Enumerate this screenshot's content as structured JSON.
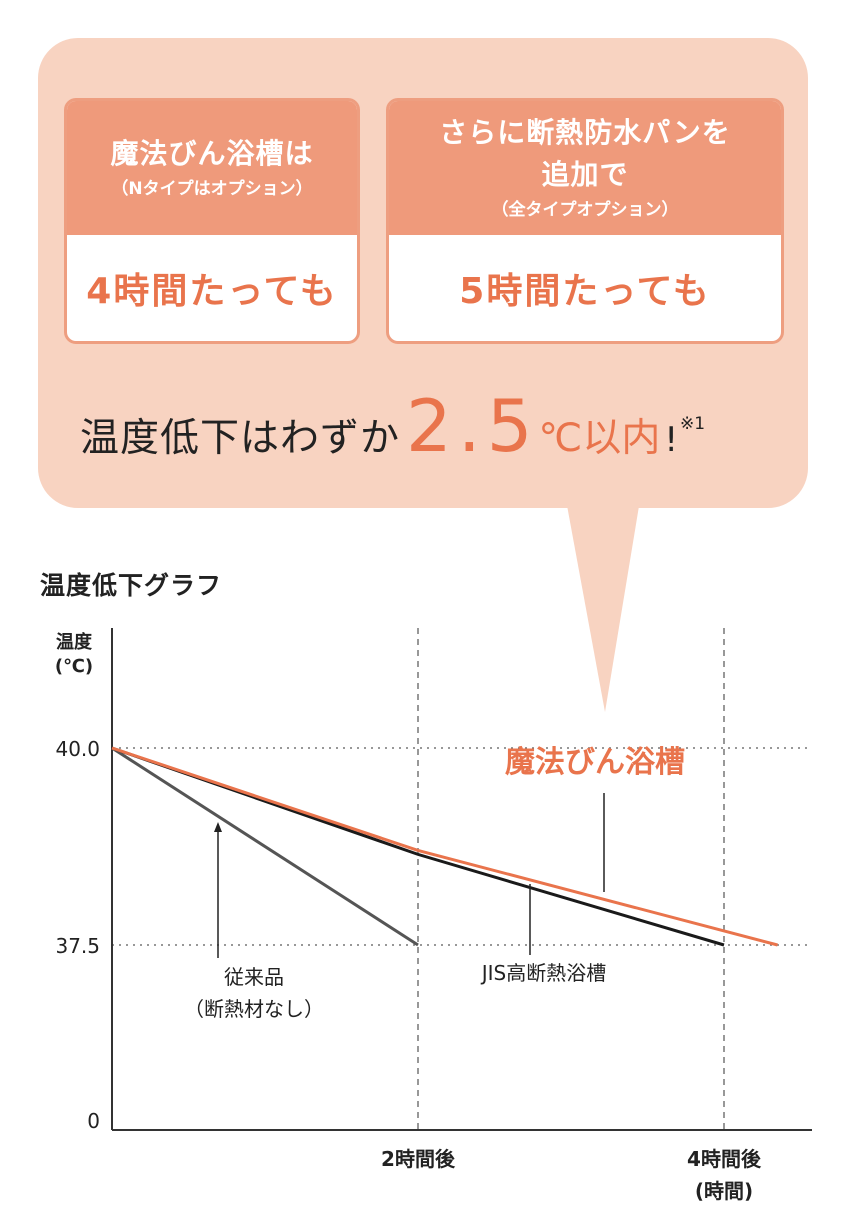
{
  "callout": {
    "cards": [
      {
        "head_lines": [
          "魔法びん浴槽は"
        ],
        "sub": "（Nタイプはオプション）",
        "value": "4時間たっても"
      },
      {
        "head_lines": [
          "さらに断熱防水パンを",
          "追加で"
        ],
        "sub": "（全タイプオプション）",
        "value": "5時間たっても"
      }
    ],
    "headline": {
      "lead": "温度低下はわずか",
      "number": "2.5",
      "unit": "℃以内",
      "exclaim": "!",
      "note": "※1"
    }
  },
  "colors": {
    "accent": "#e9744c",
    "card_head": "#ef9a7b",
    "bubble": "#f8d3c1",
    "jis_line": "#1a1a1a",
    "conventional_line": "#555555"
  },
  "chart_data": {
    "type": "line",
    "title": "温度低下グラフ",
    "ylabel": "温度\n(℃)",
    "ylabel_lines": [
      "温度",
      "(℃)"
    ],
    "x_ticks": [
      {
        "value": 2,
        "label": "2時間後"
      },
      {
        "value": 4,
        "label": "4時間後"
      }
    ],
    "x_unit": "(時間)",
    "y_ticks": [
      {
        "value": 40,
        "label": "40.0"
      },
      {
        "value": 37.5,
        "label": "37.5"
      },
      {
        "value": 0,
        "label": "0"
      }
    ],
    "axis_break": true,
    "series": [
      {
        "name": "魔法びん浴槽",
        "x": [
          0,
          2,
          4.35
        ],
        "y": [
          40,
          38.7,
          37.5
        ],
        "color": "#e9744c"
      },
      {
        "name": "JIS高断熱浴槽",
        "x": [
          0,
          2,
          4
        ],
        "y": [
          40,
          38.65,
          37.5
        ],
        "color": "#1a1a1a"
      },
      {
        "name": "従来品\n（断熱材なし）",
        "label_lines": [
          "従来品",
          "（断熱材なし）"
        ],
        "x": [
          0,
          2
        ],
        "y": [
          40,
          37.5
        ],
        "color": "#555555"
      }
    ],
    "grid": "dotted reference lines at 40.0, 37.5; dashed verticals at 2時間後, 4時間後"
  }
}
